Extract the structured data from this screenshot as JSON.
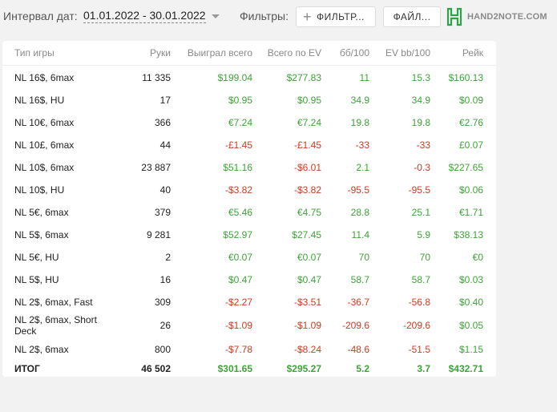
{
  "toolbar": {
    "interval_label": "Интервал дат:",
    "date_range": "01.01.2022 - 30.01.2022",
    "filters_label": "Фильтры:",
    "filter_button": "ФИЛЬТР...",
    "file_button": "ФАЙЛ...",
    "logo_text": "HAND2NOTE.COM"
  },
  "colors": {
    "positive": "#3fa33a",
    "negative": "#d23a1f",
    "logo_green": "#2fa34a"
  },
  "table": {
    "headers": [
      "Тип игры",
      "Руки",
      "Выиграл всего",
      "Всего по EV",
      "бб/100",
      "EV bb/100",
      "Рейк"
    ],
    "rows": [
      {
        "game": "NL 16$, 6max",
        "hands": "11 335",
        "won": "$199.04",
        "ev": "$277.83",
        "bb100": "11",
        "evbb": "15.3",
        "rake": "$160.13"
      },
      {
        "game": "NL 16$, HU",
        "hands": "17",
        "won": "$0.95",
        "ev": "$0.95",
        "bb100": "34.9",
        "evbb": "34.9",
        "rake": "$0.09"
      },
      {
        "game": "NL 10€, 6max",
        "hands": "366",
        "won": "€7.24",
        "ev": "€7.24",
        "bb100": "19.8",
        "evbb": "19.8",
        "rake": "€2.76"
      },
      {
        "game": "NL 10£, 6max",
        "hands": "44",
        "won": "-£1.45",
        "ev": "-£1.45",
        "bb100": "-33",
        "evbb": "-33",
        "rake": "£0.07"
      },
      {
        "game": "NL 10$, 6max",
        "hands": "23 887",
        "won": "$51.16",
        "ev": "-$6.01",
        "bb100": "2.1",
        "evbb": "-0.3",
        "rake": "$227.65"
      },
      {
        "game": "NL 10$, HU",
        "hands": "40",
        "won": "-$3.82",
        "ev": "-$3.82",
        "bb100": "-95.5",
        "evbb": "-95.5",
        "rake": "$0.06"
      },
      {
        "game": "NL 5€, 6max",
        "hands": "379",
        "won": "€5.46",
        "ev": "€4.75",
        "bb100": "28.8",
        "evbb": "25.1",
        "rake": "€1.71"
      },
      {
        "game": "NL 5$, 6max",
        "hands": "9 281",
        "won": "$52.97",
        "ev": "$27.45",
        "bb100": "11.4",
        "evbb": "5.9",
        "rake": "$38.13"
      },
      {
        "game": "NL 5€, HU",
        "hands": "2",
        "won": "€0.07",
        "ev": "€0.07",
        "bb100": "70",
        "evbb": "70",
        "rake": "€0"
      },
      {
        "game": "NL 5$, HU",
        "hands": "16",
        "won": "$0.47",
        "ev": "$0.47",
        "bb100": "58.7",
        "evbb": "58.7",
        "rake": "$0.03"
      },
      {
        "game": "NL 2$, 6max, Fast",
        "hands": "309",
        "won": "-$2.27",
        "ev": "-$3.51",
        "bb100": "-36.7",
        "evbb": "-56.8",
        "rake": "$0.40"
      },
      {
        "game": "NL 2$, 6max, Short Deck",
        "hands": "26",
        "won": "-$1.09",
        "ev": "-$1.09",
        "bb100": "-209.6",
        "evbb": "-209.6",
        "rake": "$0.05"
      },
      {
        "game": "NL 2$, 6max",
        "hands": "800",
        "won": "-$7.78",
        "ev": "-$8.24",
        "bb100": "-48.6",
        "evbb": "-51.5",
        "rake": "$1.15"
      }
    ],
    "total": {
      "game": "ИТОГ",
      "hands": "46 502",
      "won": "$301.65",
      "ev": "$295.27",
      "bb100": "5.2",
      "evbb": "3.7",
      "rake": "$432.71"
    }
  }
}
